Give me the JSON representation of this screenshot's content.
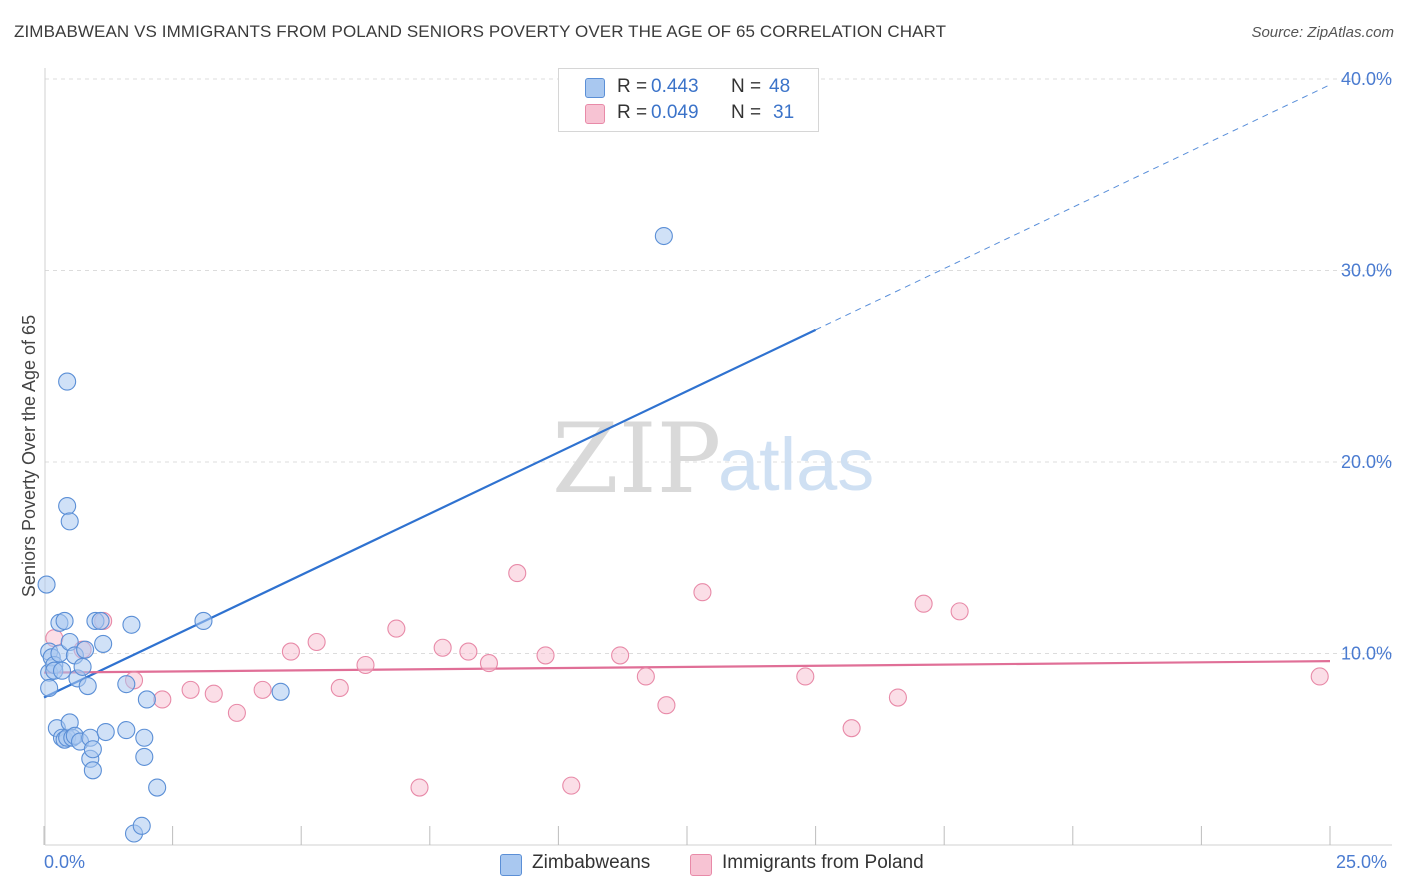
{
  "chart_data": {
    "type": "scatter",
    "title": "ZIMBABWEAN VS IMMIGRANTS FROM POLAND SENIORS POVERTY OVER THE AGE OF 65 CORRELATION CHART",
    "source": "Source: ZipAtlas.com",
    "xlabel": "",
    "ylabel": "Seniors Poverty Over the Age of 65",
    "xlim": [
      0,
      25
    ],
    "ylim": [
      0,
      40
    ],
    "y_ticks": [
      {
        "value": 10,
        "label": "10.0%"
      },
      {
        "value": 20,
        "label": "20.0%"
      },
      {
        "value": 30,
        "label": "30.0%"
      },
      {
        "value": 40,
        "label": "40.0%"
      }
    ],
    "x_tick_labels": {
      "min": "0.0%",
      "max": "25.0%"
    },
    "watermark": {
      "zip": "ZIP",
      "atlas": "atlas"
    },
    "legend": {
      "rows": [
        {
          "r_label": "R = ",
          "r_value": "0.443",
          "n_label": "N = ",
          "n_value": "48"
        },
        {
          "r_label": "R = ",
          "r_value": "0.049",
          "n_label": "N = ",
          "n_value": "31"
        }
      ]
    },
    "series": [
      {
        "name": "Zimbabweans",
        "color": "#5b8fd6",
        "fill": "#a9c8f0",
        "line_color": "#2f72d0",
        "trend": {
          "x0": 0.0,
          "y0": 7.7,
          "x1": 15.0,
          "y1": 26.9,
          "dash_to_x": 25.0,
          "dash_to_y": 39.7
        },
        "points": [
          {
            "x": 0.05,
            "y": 13.6
          },
          {
            "x": 0.1,
            "y": 10.1
          },
          {
            "x": 0.1,
            "y": 9.0
          },
          {
            "x": 0.1,
            "y": 8.2
          },
          {
            "x": 0.15,
            "y": 9.8
          },
          {
            "x": 0.2,
            "y": 9.4
          },
          {
            "x": 0.2,
            "y": 9.1
          },
          {
            "x": 0.25,
            "y": 6.1
          },
          {
            "x": 0.3,
            "y": 11.6
          },
          {
            "x": 0.3,
            "y": 10.0
          },
          {
            "x": 0.35,
            "y": 9.1
          },
          {
            "x": 0.35,
            "y": 5.6
          },
          {
            "x": 0.4,
            "y": 11.7
          },
          {
            "x": 0.4,
            "y": 5.5
          },
          {
            "x": 0.45,
            "y": 24.2
          },
          {
            "x": 0.45,
            "y": 17.7
          },
          {
            "x": 0.45,
            "y": 5.6
          },
          {
            "x": 0.5,
            "y": 16.9
          },
          {
            "x": 0.5,
            "y": 6.4
          },
          {
            "x": 0.5,
            "y": 10.6
          },
          {
            "x": 0.55,
            "y": 5.6
          },
          {
            "x": 0.6,
            "y": 9.9
          },
          {
            "x": 0.6,
            "y": 5.7
          },
          {
            "x": 0.65,
            "y": 8.7
          },
          {
            "x": 0.7,
            "y": 5.4
          },
          {
            "x": 0.75,
            "y": 9.3
          },
          {
            "x": 0.8,
            "y": 10.2
          },
          {
            "x": 0.85,
            "y": 8.3
          },
          {
            "x": 0.9,
            "y": 5.6
          },
          {
            "x": 0.9,
            "y": 4.5
          },
          {
            "x": 0.95,
            "y": 3.9
          },
          {
            "x": 0.95,
            "y": 5.0
          },
          {
            "x": 1.0,
            "y": 11.7
          },
          {
            "x": 1.1,
            "y": 11.7
          },
          {
            "x": 1.15,
            "y": 10.5
          },
          {
            "x": 1.2,
            "y": 5.9
          },
          {
            "x": 1.6,
            "y": 8.4
          },
          {
            "x": 1.6,
            "y": 6.0
          },
          {
            "x": 1.7,
            "y": 11.5
          },
          {
            "x": 1.75,
            "y": 0.6
          },
          {
            "x": 1.9,
            "y": 1.0
          },
          {
            "x": 1.95,
            "y": 5.6
          },
          {
            "x": 1.95,
            "y": 4.6
          },
          {
            "x": 2.0,
            "y": 7.6
          },
          {
            "x": 2.2,
            "y": 3.0
          },
          {
            "x": 3.1,
            "y": 11.7
          },
          {
            "x": 4.6,
            "y": 8.0
          },
          {
            "x": 12.05,
            "y": 31.8
          }
        ]
      },
      {
        "name": "Immigrants from Poland",
        "color": "#e88aa8",
        "fill": "#f7c3d3",
        "line_color": "#e06f97",
        "trend": {
          "x0": 0.0,
          "y0": 9.0,
          "x1": 25.0,
          "y1": 9.6
        },
        "points": [
          {
            "x": 0.2,
            "y": 10.8
          },
          {
            "x": 0.75,
            "y": 10.2
          },
          {
            "x": 1.15,
            "y": 11.7
          },
          {
            "x": 1.75,
            "y": 8.6
          },
          {
            "x": 2.3,
            "y": 7.6
          },
          {
            "x": 2.85,
            "y": 8.1
          },
          {
            "x": 3.3,
            "y": 7.9
          },
          {
            "x": 3.75,
            "y": 6.9
          },
          {
            "x": 4.25,
            "y": 8.1
          },
          {
            "x": 4.8,
            "y": 10.1
          },
          {
            "x": 5.3,
            "y": 10.6
          },
          {
            "x": 5.75,
            "y": 8.2
          },
          {
            "x": 6.25,
            "y": 9.4
          },
          {
            "x": 6.85,
            "y": 11.3
          },
          {
            "x": 7.3,
            "y": 3.0
          },
          {
            "x": 7.75,
            "y": 10.3
          },
          {
            "x": 8.25,
            "y": 10.1
          },
          {
            "x": 8.65,
            "y": 9.5
          },
          {
            "x": 9.2,
            "y": 14.2
          },
          {
            "x": 9.75,
            "y": 9.9
          },
          {
            "x": 10.25,
            "y": 3.1
          },
          {
            "x": 11.2,
            "y": 9.9
          },
          {
            "x": 11.7,
            "y": 8.8
          },
          {
            "x": 12.1,
            "y": 7.3
          },
          {
            "x": 12.8,
            "y": 13.2
          },
          {
            "x": 14.8,
            "y": 8.8
          },
          {
            "x": 15.7,
            "y": 6.1
          },
          {
            "x": 16.6,
            "y": 7.7
          },
          {
            "x": 17.1,
            "y": 12.6
          },
          {
            "x": 17.8,
            "y": 12.2
          },
          {
            "x": 24.8,
            "y": 8.8
          }
        ]
      }
    ]
  }
}
